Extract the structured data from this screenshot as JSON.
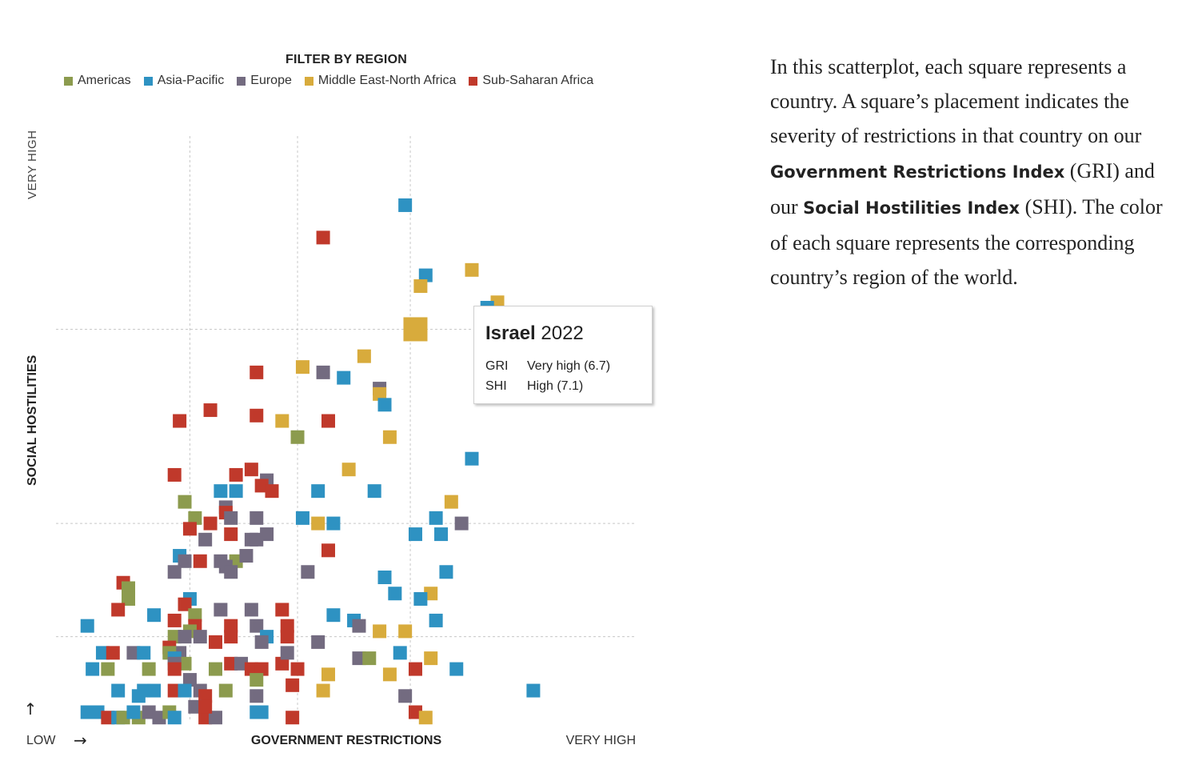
{
  "filter": {
    "title": "FILTER BY REGION",
    "regions": [
      {
        "key": "am",
        "label": "Americas",
        "color": "#8c9b4e"
      },
      {
        "key": "ap",
        "label": "Asia-Pacific",
        "color": "#2e92c2"
      },
      {
        "key": "eu",
        "label": "Europe",
        "color": "#736b80"
      },
      {
        "key": "me",
        "label": "Middle East-North Africa",
        "color": "#d8ab3c"
      },
      {
        "key": "ssa",
        "label": "Sub-Saharan Africa",
        "color": "#c0392b"
      }
    ]
  },
  "chart_data": {
    "type": "scatter",
    "xlabel": "GOVERNMENT RESTRICTIONS",
    "ylabel": "SOCIAL HOSTILITIES",
    "x_low_label": "LOW",
    "x_high_label": "VERY HIGH",
    "y_high_label": "VERY HIGH",
    "x_arrow": "→",
    "y_arrow": "↑",
    "xlim": [
      0,
      10
    ],
    "ylim": [
      0,
      10
    ],
    "x_thresholds": [
      2.3,
      4.4,
      6.6
    ],
    "y_thresholds": [
      1.4,
      3.5,
      7.1
    ],
    "highlight": {
      "x": 6.7,
      "y": 7.1,
      "region": "me"
    },
    "points": [
      [
        6.5,
        9.4,
        "ap"
      ],
      [
        4.9,
        8.8,
        "ssa"
      ],
      [
        6.9,
        8.1,
        "ap"
      ],
      [
        6.8,
        7.9,
        "me"
      ],
      [
        7.8,
        8.2,
        "me"
      ],
      [
        8.3,
        7.6,
        "me"
      ],
      [
        8.1,
        7.5,
        "ap"
      ],
      [
        4.5,
        6.4,
        "me"
      ],
      [
        4.9,
        6.3,
        "eu"
      ],
      [
        5.3,
        6.2,
        "ap"
      ],
      [
        5.7,
        6.6,
        "me"
      ],
      [
        3.6,
        6.3,
        "ssa"
      ],
      [
        6.0,
        6.0,
        "eu"
      ],
      [
        6.0,
        5.9,
        "me"
      ],
      [
        6.1,
        5.7,
        "ap"
      ],
      [
        2.1,
        5.4,
        "ssa"
      ],
      [
        2.7,
        5.6,
        "ssa"
      ],
      [
        3.6,
        5.5,
        "ssa"
      ],
      [
        4.1,
        5.4,
        "me"
      ],
      [
        5.0,
        5.4,
        "ssa"
      ],
      [
        4.4,
        5.1,
        "am"
      ],
      [
        6.2,
        5.1,
        "me"
      ],
      [
        7.8,
        4.7,
        "ap"
      ],
      [
        2.0,
        4.4,
        "ssa"
      ],
      [
        3.2,
        4.4,
        "ssa"
      ],
      [
        3.5,
        4.5,
        "ssa"
      ],
      [
        3.8,
        4.3,
        "eu"
      ],
      [
        3.7,
        4.2,
        "ssa"
      ],
      [
        3.9,
        4.1,
        "ssa"
      ],
      [
        5.4,
        4.5,
        "me"
      ],
      [
        2.9,
        4.1,
        "ap"
      ],
      [
        3.2,
        4.1,
        "ap"
      ],
      [
        4.8,
        4.1,
        "ap"
      ],
      [
        5.9,
        4.1,
        "ap"
      ],
      [
        2.2,
        3.9,
        "am"
      ],
      [
        3.0,
        3.8,
        "eu"
      ],
      [
        3.0,
        3.7,
        "ssa"
      ],
      [
        3.1,
        3.6,
        "eu"
      ],
      [
        3.6,
        3.6,
        "eu"
      ],
      [
        7.4,
        3.9,
        "me"
      ],
      [
        2.4,
        3.6,
        "am"
      ],
      [
        4.5,
        3.6,
        "ap"
      ],
      [
        4.8,
        3.5,
        "me"
      ],
      [
        5.1,
        3.5,
        "ap"
      ],
      [
        7.1,
        3.6,
        "ap"
      ],
      [
        2.7,
        3.5,
        "ssa"
      ],
      [
        2.3,
        3.4,
        "ssa"
      ],
      [
        7.6,
        3.5,
        "eu"
      ],
      [
        6.7,
        3.3,
        "ap"
      ],
      [
        7.2,
        3.3,
        "ap"
      ],
      [
        2.6,
        3.2,
        "eu"
      ],
      [
        3.1,
        3.3,
        "ssa"
      ],
      [
        3.5,
        3.2,
        "eu"
      ],
      [
        3.6,
        3.2,
        "eu"
      ],
      [
        3.8,
        3.3,
        "eu"
      ],
      [
        5.0,
        3.0,
        "ssa"
      ],
      [
        2.1,
        2.9,
        "ap"
      ],
      [
        2.2,
        2.8,
        "eu"
      ],
      [
        2.5,
        2.8,
        "ssa"
      ],
      [
        2.9,
        2.8,
        "eu"
      ],
      [
        3.2,
        2.8,
        "am"
      ],
      [
        3.4,
        2.9,
        "eu"
      ],
      [
        3.0,
        2.7,
        "eu"
      ],
      [
        6.1,
        2.5,
        "ap"
      ],
      [
        2.0,
        2.6,
        "eu"
      ],
      [
        3.1,
        2.6,
        "eu"
      ],
      [
        4.6,
        2.6,
        "eu"
      ],
      [
        7.3,
        2.6,
        "ap"
      ],
      [
        1.0,
        2.4,
        "ssa"
      ],
      [
        1.1,
        2.3,
        "am"
      ],
      [
        1.1,
        2.1,
        "am"
      ],
      [
        6.3,
        2.2,
        "ap"
      ],
      [
        7.0,
        2.2,
        "me"
      ],
      [
        2.3,
        2.1,
        "ap"
      ],
      [
        2.2,
        2.0,
        "ssa"
      ],
      [
        2.9,
        1.9,
        "eu"
      ],
      [
        3.5,
        1.9,
        "eu"
      ],
      [
        4.1,
        1.9,
        "ssa"
      ],
      [
        6.8,
        2.1,
        "ap"
      ],
      [
        0.9,
        1.9,
        "ssa"
      ],
      [
        1.6,
        1.8,
        "ap"
      ],
      [
        2.4,
        1.8,
        "am"
      ],
      [
        5.1,
        1.8,
        "ap"
      ],
      [
        5.5,
        1.7,
        "ap"
      ],
      [
        2.0,
        1.7,
        "ssa"
      ],
      [
        2.4,
        1.6,
        "ssa"
      ],
      [
        3.1,
        1.6,
        "ssa"
      ],
      [
        3.6,
        1.6,
        "eu"
      ],
      [
        4.2,
        1.6,
        "ssa"
      ],
      [
        5.6,
        1.6,
        "eu"
      ],
      [
        6.0,
        1.5,
        "me"
      ],
      [
        6.5,
        1.5,
        "me"
      ],
      [
        7.1,
        1.7,
        "ap"
      ],
      [
        0.3,
        1.6,
        "ap"
      ],
      [
        2.3,
        1.5,
        "am"
      ],
      [
        2.0,
        1.4,
        "am"
      ],
      [
        2.2,
        1.4,
        "eu"
      ],
      [
        2.5,
        1.4,
        "eu"
      ],
      [
        3.1,
        1.4,
        "ssa"
      ],
      [
        3.8,
        1.4,
        "ap"
      ],
      [
        4.2,
        1.4,
        "ssa"
      ],
      [
        2.8,
        1.3,
        "ssa"
      ],
      [
        3.7,
        1.3,
        "eu"
      ],
      [
        1.9,
        1.2,
        "ssa"
      ],
      [
        2.1,
        1.1,
        "eu"
      ],
      [
        4.8,
        1.3,
        "eu"
      ],
      [
        0.6,
        1.1,
        "ap"
      ],
      [
        0.8,
        1.1,
        "ssa"
      ],
      [
        1.2,
        1.1,
        "eu"
      ],
      [
        1.4,
        1.1,
        "ap"
      ],
      [
        1.9,
        1.1,
        "am"
      ],
      [
        2.0,
        1.0,
        "ap"
      ],
      [
        2.2,
        0.9,
        "am"
      ],
      [
        2.0,
        0.9,
        "eu"
      ],
      [
        3.1,
        0.9,
        "ssa"
      ],
      [
        3.3,
        0.9,
        "eu"
      ],
      [
        4.1,
        0.9,
        "ssa"
      ],
      [
        4.2,
        1.1,
        "eu"
      ],
      [
        6.4,
        1.1,
        "ap"
      ],
      [
        5.6,
        1.0,
        "eu"
      ],
      [
        5.8,
        1.0,
        "am"
      ],
      [
        7.0,
        1.0,
        "me"
      ],
      [
        0.4,
        0.8,
        "ap"
      ],
      [
        0.7,
        0.8,
        "am"
      ],
      [
        1.5,
        0.8,
        "am"
      ],
      [
        2.0,
        0.8,
        "ssa"
      ],
      [
        2.8,
        0.8,
        "am"
      ],
      [
        3.5,
        0.8,
        "ssa"
      ],
      [
        3.7,
        0.8,
        "ssa"
      ],
      [
        4.4,
        0.8,
        "ssa"
      ],
      [
        6.7,
        0.8,
        "ssa"
      ],
      [
        7.5,
        0.8,
        "ap"
      ],
      [
        5.0,
        0.7,
        "me"
      ],
      [
        6.2,
        0.7,
        "me"
      ],
      [
        2.3,
        0.6,
        "eu"
      ],
      [
        3.6,
        0.6,
        "am"
      ],
      [
        4.3,
        0.5,
        "ssa"
      ],
      [
        0.9,
        0.4,
        "ap"
      ],
      [
        1.4,
        0.4,
        "ap"
      ],
      [
        1.6,
        0.4,
        "ap"
      ],
      [
        2.0,
        0.4,
        "ssa"
      ],
      [
        2.2,
        0.4,
        "ap"
      ],
      [
        2.5,
        0.4,
        "eu"
      ],
      [
        3.0,
        0.4,
        "am"
      ],
      [
        4.9,
        0.4,
        "me"
      ],
      [
        9.0,
        0.4,
        "ap"
      ],
      [
        6.5,
        0.3,
        "eu"
      ],
      [
        1.3,
        0.3,
        "ap"
      ],
      [
        2.6,
        0.3,
        "ssa"
      ],
      [
        3.6,
        0.3,
        "eu"
      ],
      [
        0.3,
        0.0,
        "ap"
      ],
      [
        0.5,
        0.0,
        "ap"
      ],
      [
        0.7,
        -0.1,
        "ssa"
      ],
      [
        0.9,
        -0.1,
        "ap"
      ],
      [
        1.0,
        -0.1,
        "am"
      ],
      [
        1.3,
        -0.1,
        "am"
      ],
      [
        1.5,
        0.0,
        "eu"
      ],
      [
        1.7,
        -0.1,
        "eu"
      ],
      [
        1.9,
        0.0,
        "am"
      ],
      [
        2.0,
        -0.1,
        "ap"
      ],
      [
        2.4,
        0.1,
        "eu"
      ],
      [
        2.6,
        -0.1,
        "ssa"
      ],
      [
        2.8,
        -0.1,
        "eu"
      ],
      [
        3.6,
        0.0,
        "ap"
      ],
      [
        4.3,
        -0.1,
        "ssa"
      ],
      [
        6.7,
        0.0,
        "ssa"
      ],
      [
        6.9,
        -0.1,
        "me"
      ],
      [
        1.2,
        0.0,
        "ap"
      ],
      [
        2.6,
        0.1,
        "ssa"
      ],
      [
        3.7,
        0.0,
        "ap"
      ]
    ]
  },
  "tooltip": {
    "country": "Israel",
    "year": "2022",
    "gri_label": "GRI",
    "gri_value": "Very high (6.7)",
    "shi_label": "SHI",
    "shi_value": "High (7.1)"
  },
  "description": {
    "part1": "In this scatterplot, each square represents a country. A square’s placement indicates the severity of restrictions in that country on our ",
    "gri_name": "Government Restrictions Index",
    "part2": " (GRI) and our ",
    "shi_name": "Social Hostilities Index",
    "part3": " (SHI). The color of each square represents the corresponding country’s region of the world."
  }
}
